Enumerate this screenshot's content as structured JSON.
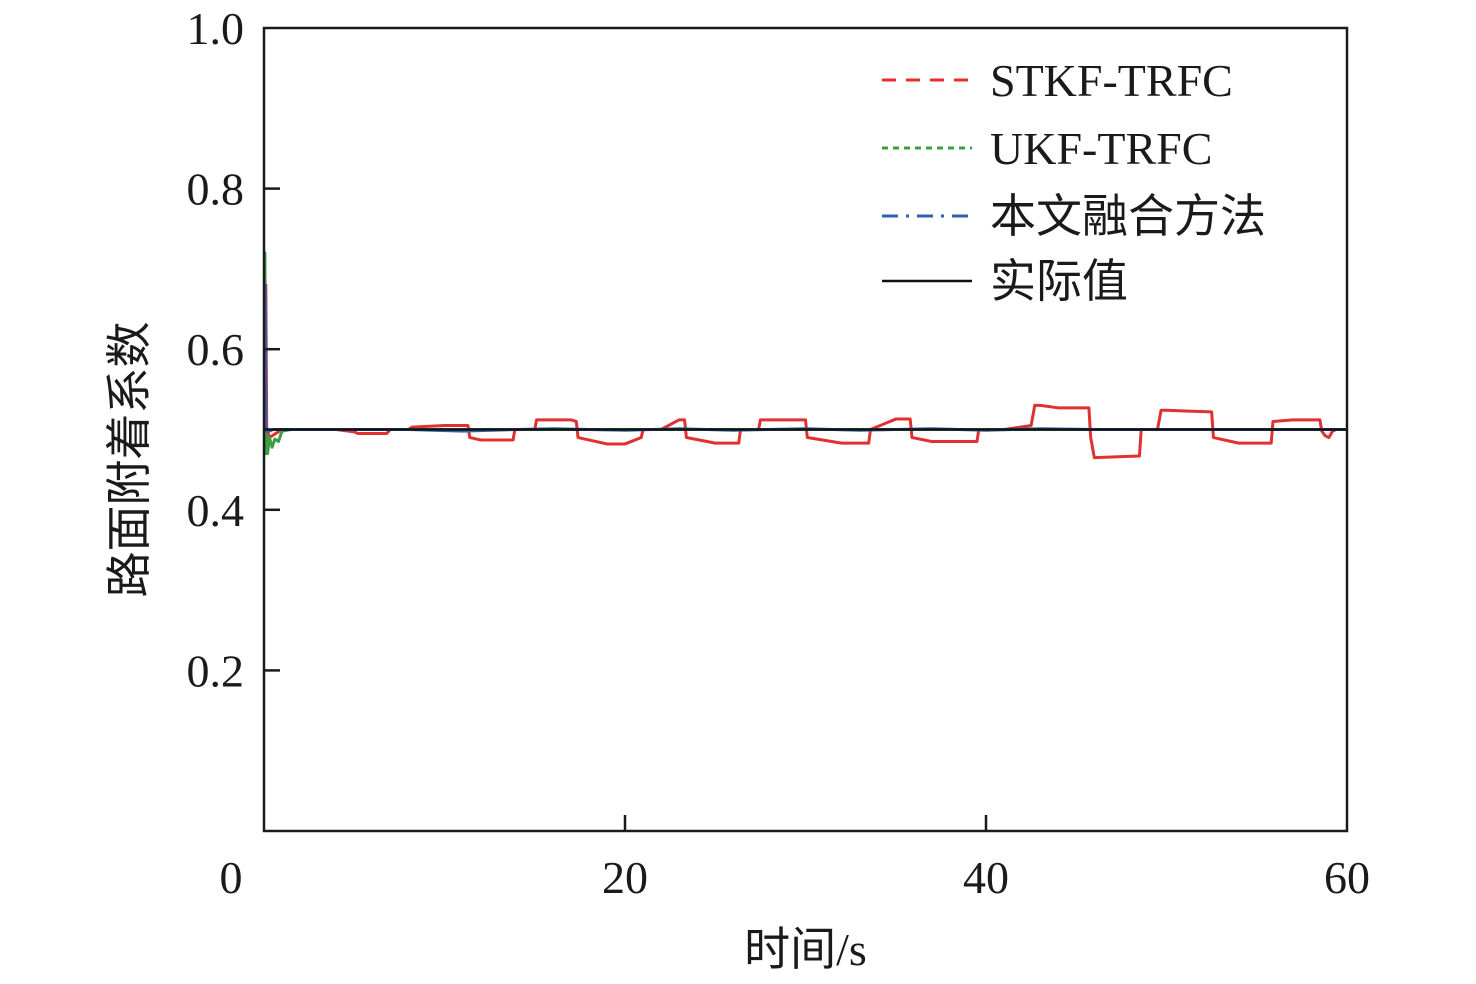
{
  "chart_data": {
    "type": "line",
    "title": "",
    "xlabel": "时间/s",
    "ylabel": "路面附着系数",
    "xlim": [
      0,
      60
    ],
    "ylim": [
      0,
      1.0
    ],
    "x_ticks": [
      0,
      20,
      40,
      60
    ],
    "x_tick_labels": [
      "0",
      "20",
      "40",
      "60"
    ],
    "y_ticks": [
      0.2,
      0.4,
      0.6,
      0.8,
      1.0
    ],
    "y_tick_labels": [
      "0.2",
      "0.4",
      "0.6",
      "0.8",
      "1.0"
    ],
    "grid": false,
    "legend_position": "top-right",
    "series": [
      {
        "name": "STKF-TRFC",
        "color": "#e03030",
        "style": "dashed",
        "x": [
          0,
          0.1,
          0.15,
          0.3,
          1.0,
          1.8,
          2.0,
          3.0,
          4.0,
          5.0,
          5.2,
          6.8,
          7.0,
          8.0,
          8.2,
          10.0,
          11.3,
          11.4,
          12.0,
          13.8,
          13.9,
          15.0,
          15.1,
          17.0,
          17.3,
          17.4,
          19.0,
          19.8,
          20.0,
          20.9,
          21.0,
          22.0,
          23.0,
          23.3,
          23.4,
          25.0,
          26.3,
          26.4,
          27.4,
          27.5,
          29.0,
          30.0,
          30.1,
          32.0,
          33.5,
          33.6,
          35.0,
          35.8,
          35.9,
          37.0,
          39.5,
          39.6,
          41.0,
          42.5,
          42.7,
          43.0,
          44.0,
          45.7,
          45.8,
          46.0,
          48.5,
          48.6,
          49.5,
          49.7,
          50.0,
          51.0,
          52.5,
          52.6,
          54.0,
          55.8,
          55.9,
          57.0,
          58.5,
          58.6,
          58.8,
          59.0,
          59.2,
          59.4,
          60.0
        ],
        "y": [
          0.5,
          0.68,
          0.5,
          0.49,
          0.5,
          0.5,
          0.5,
          0.5,
          0.5,
          0.497,
          0.495,
          0.495,
          0.5,
          0.5,
          0.503,
          0.505,
          0.505,
          0.49,
          0.487,
          0.487,
          0.5,
          0.5,
          0.512,
          0.512,
          0.51,
          0.49,
          0.482,
          0.482,
          0.482,
          0.49,
          0.5,
          0.5,
          0.512,
          0.512,
          0.49,
          0.483,
          0.483,
          0.5,
          0.5,
          0.512,
          0.512,
          0.512,
          0.49,
          0.483,
          0.483,
          0.5,
          0.513,
          0.513,
          0.49,
          0.485,
          0.485,
          0.5,
          0.5,
          0.505,
          0.53,
          0.53,
          0.527,
          0.527,
          0.49,
          0.465,
          0.467,
          0.5,
          0.5,
          0.524,
          0.524,
          0.523,
          0.522,
          0.49,
          0.483,
          0.483,
          0.51,
          0.512,
          0.512,
          0.498,
          0.492,
          0.49,
          0.498,
          0.5,
          0.5
        ]
      },
      {
        "name": "UKF-TRFC",
        "color": "#3aa040",
        "style": "dotted",
        "x": [
          0,
          0.05,
          0.1,
          0.15,
          0.2,
          0.3,
          0.45,
          0.6,
          0.8,
          1.0,
          1.5,
          60.0
        ],
        "y": [
          0.5,
          0.72,
          0.47,
          0.49,
          0.47,
          0.49,
          0.478,
          0.488,
          0.485,
          0.498,
          0.5,
          0.5
        ]
      },
      {
        "name": "本文融合方法",
        "color": "#3060b0",
        "style": "dashdot",
        "x": [
          0,
          0.06,
          0.1,
          0.2,
          0.5,
          1.0,
          8.0,
          11.0,
          14.0,
          16.0,
          20.0,
          23.0,
          26.0,
          30.0,
          33.0,
          37.0,
          40.0,
          43.0,
          46.0,
          60.0
        ],
        "y": [
          0.5,
          0.68,
          0.5,
          0.497,
          0.5,
          0.5,
          0.5,
          0.498,
          0.5,
          0.501,
          0.499,
          0.501,
          0.499,
          0.501,
          0.499,
          0.501,
          0.499,
          0.501,
          0.5,
          0.5
        ]
      },
      {
        "name": "实际值",
        "color": "#111111",
        "style": "solid",
        "x": [
          0,
          60
        ],
        "y": [
          0.5,
          0.5
        ]
      }
    ]
  }
}
